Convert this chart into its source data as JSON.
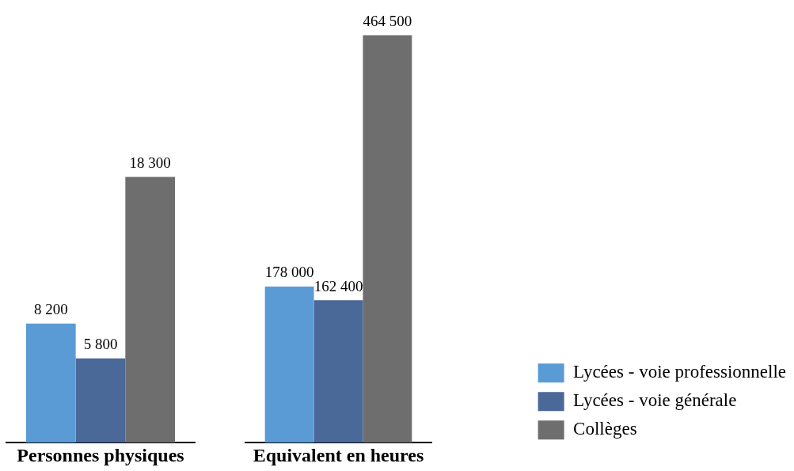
{
  "chart_data": [
    {
      "type": "bar",
      "categories": [
        "Personnes physiques"
      ],
      "series": [
        {
          "color": "#5b9bd5",
          "values": [
            8200
          ],
          "value_labels": [
            "8 200"
          ]
        },
        {
          "color": "#4a6898",
          "values": [
            5800
          ],
          "value_labels": [
            "5 800"
          ]
        },
        {
          "color": "#6e6e6e",
          "values": [
            18300
          ],
          "value_labels": [
            "18 300"
          ]
        }
      ]
    },
    {
      "type": "bar",
      "categories": [
        "Equivalent en heures"
      ],
      "series": [
        {
          "name": "Lycées - voie professionnelle",
          "color": "#5b9bd5",
          "values": [
            178000
          ],
          "value_labels": [
            "178 000"
          ]
        },
        {
          "name": "Lycées - voie générale",
          "color": "#4a6898",
          "values": [
            162400
          ],
          "value_labels": [
            "162 400"
          ]
        },
        {
          "name": "Collèges",
          "color": "#6e6e6e",
          "values": [
            464500
          ],
          "value_labels": [
            "464 500"
          ]
        }
      ],
      "legend": "bottom right"
    }
  ]
}
